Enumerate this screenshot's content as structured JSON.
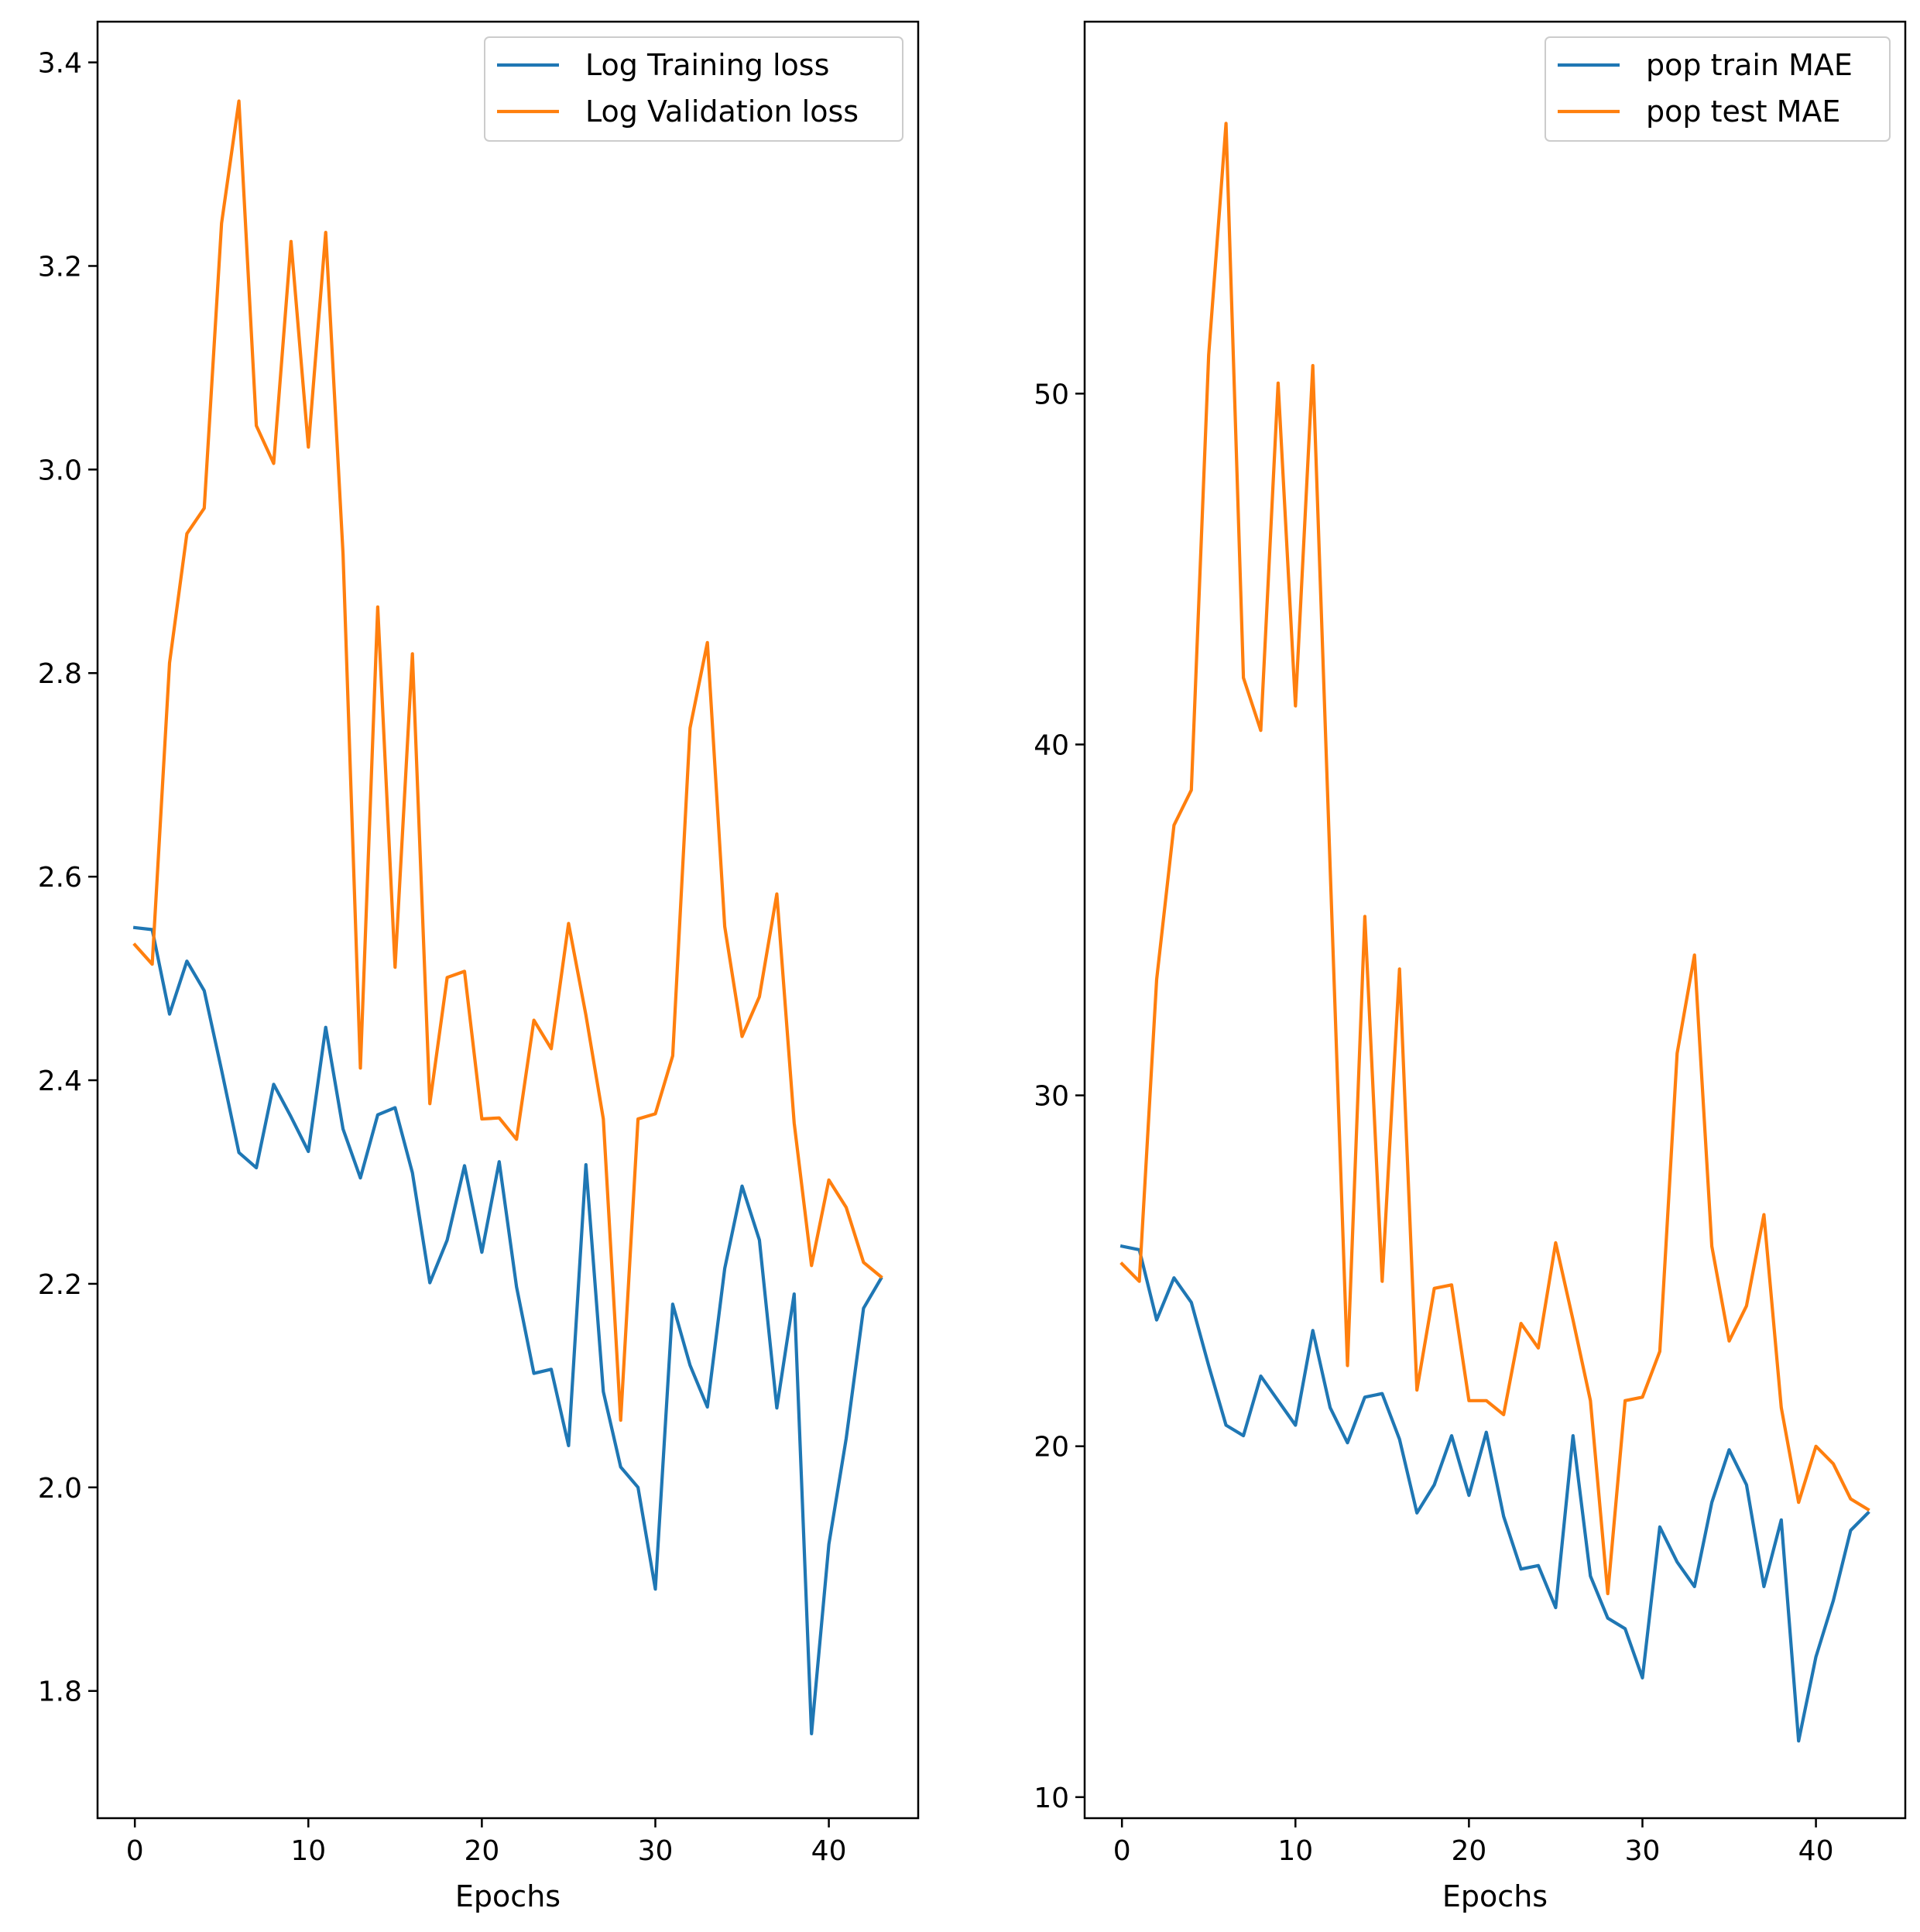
{
  "chart_data": [
    {
      "type": "line",
      "title": "",
      "xlabel": "Epochs",
      "ylabel": "",
      "xlim": [
        -2.15,
        45.15
      ],
      "ylim": [
        1.675,
        3.44
      ],
      "xticks": [
        0,
        10,
        20,
        30,
        40
      ],
      "yticks": [
        1.8,
        2.0,
        2.2,
        2.4,
        2.6,
        2.8,
        3.0,
        3.2,
        3.4
      ],
      "ytick_format": "fixed1",
      "grid": false,
      "legend_position": "upper right",
      "x": [
        0,
        1,
        2,
        3,
        4,
        5,
        6,
        7,
        8,
        9,
        10,
        11,
        12,
        13,
        14,
        15,
        16,
        17,
        18,
        19,
        20,
        21,
        22,
        23,
        24,
        25,
        26,
        27,
        28,
        29,
        30,
        31,
        32,
        33,
        34,
        35,
        36,
        37,
        38,
        39,
        40,
        41,
        42,
        43
      ],
      "series": [
        {
          "name": "Log Training loss",
          "color": "#1f77b4",
          "values": [
            2.55,
            2.548,
            2.465,
            2.517,
            2.488,
            2.41,
            2.329,
            2.314,
            2.396,
            2.364,
            2.33,
            2.452,
            2.352,
            2.304,
            2.366,
            2.373,
            2.309,
            2.201,
            2.243,
            2.316,
            2.231,
            2.32,
            2.197,
            2.112,
            2.116,
            2.041,
            2.317,
            2.094,
            2.02,
            2.0,
            1.9,
            2.18,
            2.12,
            2.079,
            2.215,
            2.296,
            2.243,
            2.078,
            2.19,
            1.758,
            1.944,
            2.048,
            2.176,
            2.205
          ]
        },
        {
          "name": "Log Validation loss",
          "color": "#ff7f0e",
          "values": [
            2.533,
            2.514,
            2.81,
            2.937,
            2.962,
            3.242,
            3.362,
            3.043,
            3.006,
            3.224,
            3.022,
            3.233,
            2.917,
            2.412,
            2.865,
            2.511,
            2.819,
            2.377,
            2.501,
            2.507,
            2.362,
            2.363,
            2.342,
            2.459,
            2.431,
            2.554,
            2.464,
            2.362,
            2.066,
            2.362,
            2.367,
            2.424,
            2.746,
            2.83,
            2.551,
            2.443,
            2.482,
            2.583,
            2.358,
            2.218,
            2.302,
            2.275,
            2.221,
            2.207
          ]
        }
      ]
    },
    {
      "type": "line",
      "title": "",
      "xlabel": "Epochs",
      "ylabel": "",
      "xlim": [
        -2.15,
        45.15
      ],
      "ylim": [
        9.4,
        60.6
      ],
      "xticks": [
        0,
        10,
        20,
        30,
        40
      ],
      "yticks": [
        10,
        20,
        30,
        40,
        50
      ],
      "ytick_format": "int",
      "grid": false,
      "legend_position": "upper right",
      "x": [
        0,
        1,
        2,
        3,
        4,
        5,
        6,
        7,
        8,
        9,
        10,
        11,
        12,
        13,
        14,
        15,
        16,
        17,
        18,
        19,
        20,
        21,
        22,
        23,
        24,
        25,
        26,
        27,
        28,
        29,
        30,
        31,
        32,
        33,
        34,
        35,
        36,
        37,
        38,
        39,
        40,
        41,
        42,
        43
      ],
      "series": [
        {
          "name": "pop train MAE",
          "color": "#1f77b4",
          "values": [
            25.7,
            25.6,
            23.6,
            24.8,
            24.1,
            22.3,
            20.6,
            20.3,
            22.0,
            21.3,
            20.6,
            23.3,
            21.1,
            20.1,
            21.4,
            21.5,
            20.2,
            18.1,
            18.9,
            20.3,
            18.6,
            20.4,
            18.0,
            16.5,
            16.6,
            15.4,
            20.3,
            16.3,
            15.1,
            14.8,
            13.4,
            17.7,
            16.7,
            16.0,
            18.4,
            19.9,
            18.9,
            16.0,
            17.9,
            11.6,
            14.0,
            15.6,
            17.6,
            18.1
          ]
        },
        {
          "name": "pop test MAE",
          "color": "#ff7f0e",
          "values": [
            25.2,
            24.7,
            33.3,
            37.7,
            38.7,
            51.1,
            57.7,
            41.9,
            40.4,
            50.3,
            41.1,
            50.8,
            36.5,
            22.3,
            35.1,
            24.7,
            33.6,
            21.6,
            24.5,
            24.6,
            21.3,
            21.3,
            20.9,
            23.5,
            22.8,
            25.8,
            23.6,
            21.3,
            15.8,
            21.3,
            21.4,
            22.7,
            31.2,
            34.0,
            25.7,
            23.0,
            24.0,
            26.6,
            21.1,
            18.4,
            20.0,
            19.5,
            18.5,
            18.2
          ]
        }
      ]
    }
  ]
}
